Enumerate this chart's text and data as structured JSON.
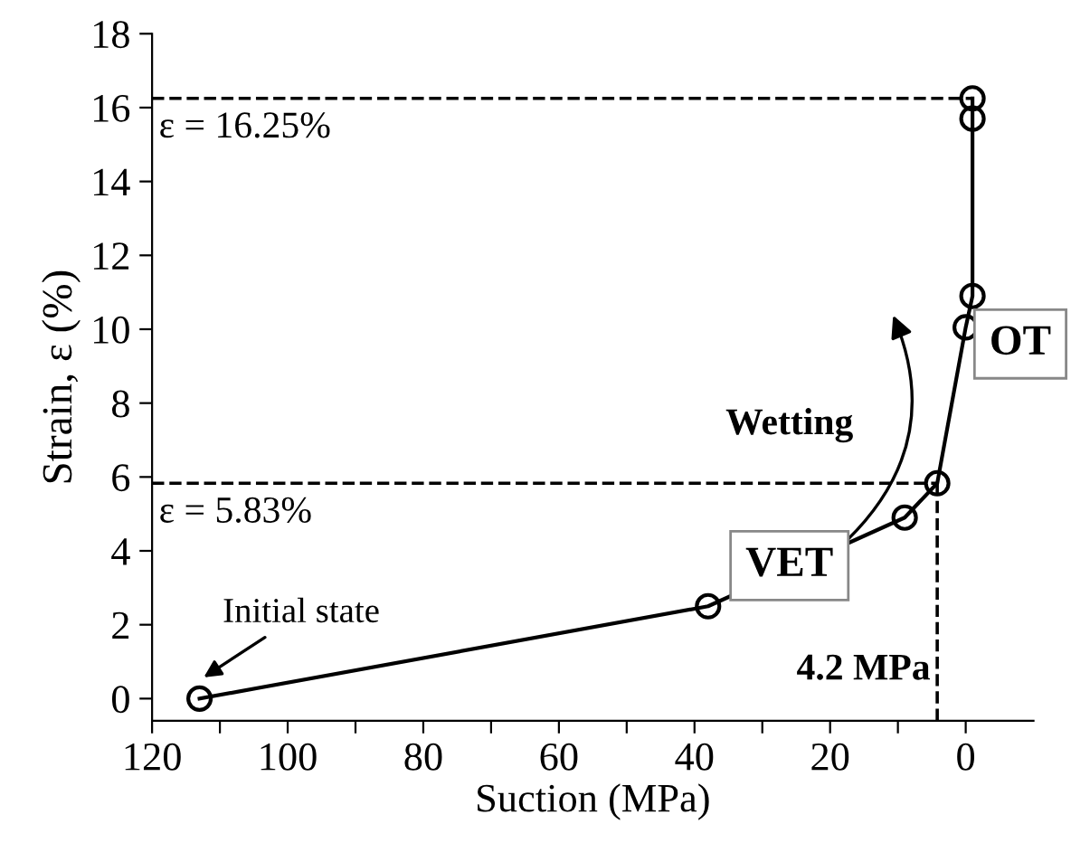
{
  "chart_data": {
    "type": "line",
    "xlabel": "Suction (MPa)",
    "ylabel": "Strain, ε (%)",
    "xlim": [
      120,
      -10
    ],
    "ylim": [
      -0.6,
      18
    ],
    "xticks": [
      120,
      {
        "value": 110,
        "label": null
      },
      100,
      {
        "value": 90,
        "label": null
      },
      80,
      {
        "value": 70,
        "label": null
      },
      60,
      {
        "value": 50,
        "label": null
      },
      40,
      {
        "value": 30,
        "label": null
      },
      20,
      {
        "value": 10,
        "label": null
      },
      0
    ],
    "yticks": [
      0,
      2,
      4,
      6,
      8,
      10,
      12,
      14,
      16,
      18
    ],
    "series": [
      {
        "color": "#000000",
        "x": [
          113,
          38,
          9,
          4.2,
          0,
          -1,
          -1,
          -1
        ],
        "values": [
          0,
          2.5,
          4.9,
          5.83,
          10.05,
          10.9,
          15.7,
          16.25
        ]
      }
    ],
    "marker": "circle",
    "line_style": "solid",
    "grid": false,
    "ref_lines": [
      {
        "axis": "y",
        "value": 16.25,
        "label": "ε = 16.25%",
        "line_style": "dashed",
        "color": "#000000"
      },
      {
        "axis": "y",
        "value": 5.83,
        "label": "ε = 5.83%",
        "line_style": "dashed",
        "color": "#000000"
      },
      {
        "axis": "x",
        "value": 4.2,
        "label": "4.2 MPa",
        "line_style": "dashed",
        "color": "#000000"
      }
    ],
    "annotations": [
      {
        "text": "Initial state",
        "x": 113,
        "y": 0
      },
      "Wetting",
      "VET",
      "OT"
    ]
  }
}
